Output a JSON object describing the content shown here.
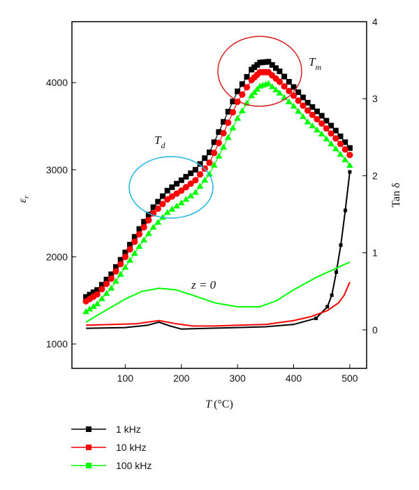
{
  "chart_data": {
    "type": "line",
    "x_axis": {
      "label_var": "T",
      "label_unit": "(°C)",
      "range": [
        5,
        530
      ],
      "ticks": [
        100,
        200,
        300,
        400,
        500
      ]
    },
    "y_left": {
      "label_main": "ε",
      "label_sub": "r",
      "range": [
        720,
        4700
      ],
      "ticks": [
        1000,
        2000,
        3000,
        4000
      ]
    },
    "y_right": {
      "label": "Tan δ",
      "range": [
        -0.5,
        4
      ],
      "ticks": [
        0,
        1,
        2,
        3,
        4
      ]
    },
    "series": [
      {
        "name": "1 kHz",
        "color": "#000000",
        "marker": "square",
        "permittivity": [
          [
            30,
            1540
          ],
          [
            50,
            1620
          ],
          [
            75,
            1800
          ],
          [
            100,
            2050
          ],
          [
            125,
            2320
          ],
          [
            150,
            2570
          ],
          [
            175,
            2760
          ],
          [
            200,
            2880
          ],
          [
            225,
            3000
          ],
          [
            250,
            3200
          ],
          [
            275,
            3550
          ],
          [
            300,
            3900
          ],
          [
            325,
            4150
          ],
          [
            340,
            4230
          ],
          [
            355,
            4240
          ],
          [
            375,
            4130
          ],
          [
            400,
            3950
          ],
          [
            425,
            3770
          ],
          [
            450,
            3620
          ],
          [
            475,
            3450
          ],
          [
            500,
            3250
          ]
        ],
        "tan_delta": [
          [
            30,
            0.02
          ],
          [
            100,
            0.03
          ],
          [
            140,
            0.06
          ],
          [
            160,
            0.1
          ],
          [
            180,
            0.05
          ],
          [
            200,
            0.01
          ],
          [
            250,
            0.02
          ],
          [
            300,
            0.03
          ],
          [
            350,
            0.04
          ],
          [
            400,
            0.07
          ],
          [
            440,
            0.15
          ],
          [
            460,
            0.3
          ],
          [
            468,
            0.45
          ],
          [
            476,
            0.75
          ],
          [
            484,
            1.1
          ],
          [
            492,
            1.55
          ],
          [
            500,
            2.05
          ]
        ]
      },
      {
        "name": "10 kHz",
        "color": "#ff0000",
        "marker": "circle",
        "permittivity": [
          [
            30,
            1490
          ],
          [
            50,
            1570
          ],
          [
            75,
            1750
          ],
          [
            100,
            2000
          ],
          [
            125,
            2260
          ],
          [
            150,
            2500
          ],
          [
            175,
            2660
          ],
          [
            200,
            2760
          ],
          [
            225,
            2880
          ],
          [
            250,
            3080
          ],
          [
            275,
            3420
          ],
          [
            300,
            3780
          ],
          [
            325,
            4030
          ],
          [
            340,
            4120
          ],
          [
            355,
            4120
          ],
          [
            375,
            4010
          ],
          [
            400,
            3850
          ],
          [
            425,
            3680
          ],
          [
            450,
            3530
          ],
          [
            475,
            3360
          ],
          [
            500,
            3170
          ]
        ],
        "tan_delta": [
          [
            30,
            0.06
          ],
          [
            80,
            0.07
          ],
          [
            120,
            0.08
          ],
          [
            160,
            0.12
          ],
          [
            190,
            0.08
          ],
          [
            220,
            0.05
          ],
          [
            260,
            0.05
          ],
          [
            300,
            0.06
          ],
          [
            350,
            0.07
          ],
          [
            400,
            0.12
          ],
          [
            430,
            0.17
          ],
          [
            460,
            0.25
          ],
          [
            480,
            0.35
          ],
          [
            490,
            0.45
          ],
          [
            500,
            0.62
          ]
        ]
      },
      {
        "name": "100 kHz",
        "color": "#00ff00",
        "marker": "triangle",
        "permittivity": [
          [
            30,
            1370
          ],
          [
            50,
            1460
          ],
          [
            75,
            1640
          ],
          [
            100,
            1880
          ],
          [
            125,
            2120
          ],
          [
            150,
            2340
          ],
          [
            175,
            2510
          ],
          [
            200,
            2620
          ],
          [
            225,
            2740
          ],
          [
            250,
            2950
          ],
          [
            275,
            3260
          ],
          [
            300,
            3590
          ],
          [
            325,
            3850
          ],
          [
            340,
            3960
          ],
          [
            355,
            3990
          ],
          [
            375,
            3880
          ],
          [
            400,
            3730
          ],
          [
            425,
            3550
          ],
          [
            450,
            3410
          ],
          [
            475,
            3240
          ],
          [
            500,
            3050
          ]
        ],
        "tan_delta": [
          [
            30,
            0.1
          ],
          [
            60,
            0.23
          ],
          [
            100,
            0.4
          ],
          [
            130,
            0.5
          ],
          [
            160,
            0.54
          ],
          [
            190,
            0.52
          ],
          [
            220,
            0.45
          ],
          [
            260,
            0.35
          ],
          [
            300,
            0.3
          ],
          [
            340,
            0.3
          ],
          [
            370,
            0.38
          ],
          [
            400,
            0.52
          ],
          [
            440,
            0.68
          ],
          [
            470,
            0.78
          ],
          [
            500,
            0.88
          ]
        ]
      }
    ],
    "annotations": {
      "td_main": "T",
      "td_sub": "d",
      "tm_main": "T",
      "tm_sub": "m",
      "z_label": "z = 0"
    },
    "grid": false,
    "legend_position": "below"
  }
}
